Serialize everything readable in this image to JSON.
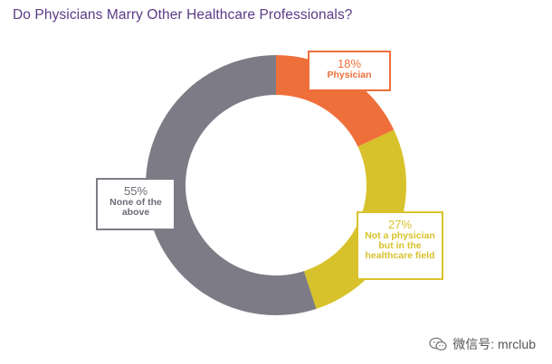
{
  "chart_data": {
    "type": "pie",
    "title": "Do Physicians Marry Other Healthcare Professionals?",
    "donut": true,
    "slices": [
      {
        "label": "Physician",
        "value": 18,
        "value_label": "18%",
        "color": "#ef6f3b"
      },
      {
        "label": "Not a physician but in the healthcare field",
        "value": 27,
        "value_label": "27%",
        "color": "#d8c22b"
      },
      {
        "label": "None of the above",
        "value": 55,
        "value_label": "55%",
        "color": "#7d7b86"
      }
    ]
  },
  "watermark": {
    "text": "微信号: mrclub",
    "icon": "wechat-icon"
  }
}
